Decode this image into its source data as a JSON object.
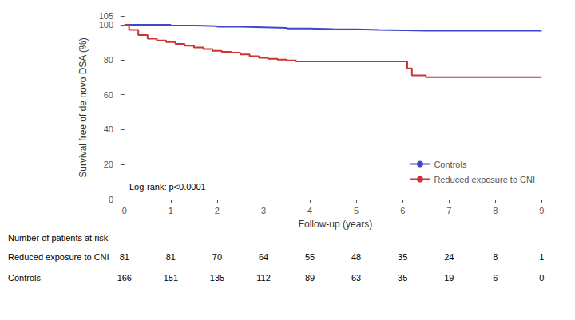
{
  "chart_data": {
    "type": "step",
    "xlabel": "Follow-up (years)",
    "ylabel": "Survival free of de novo DSA (%)",
    "xlim": [
      -0.1,
      9.2
    ],
    "ylim": [
      0,
      105
    ],
    "xticks": [
      0,
      1,
      2,
      3,
      4,
      5,
      6,
      7,
      8,
      9
    ],
    "yticks": [
      0,
      20,
      40,
      60,
      80,
      100
    ],
    "grid": false,
    "legend": "lower right",
    "annotations": [
      "Log-rank: p<0.0001"
    ],
    "series": [
      {
        "name": "Controls",
        "color": "#4444cc",
        "x": [
          0,
          0.05,
          0.2,
          0.5,
          1.0,
          1.5,
          2.0,
          2.5,
          3.0,
          3.5,
          4.0,
          4.5,
          5.0,
          5.5,
          6.0,
          6.5,
          7.0,
          7.5,
          8.0,
          8.5,
          9.0
        ],
        "values": [
          100,
          100,
          100,
          100,
          99.5,
          99.2,
          98.8,
          98.5,
          98.2,
          97.8,
          97.5,
          97.3,
          97.0,
          96.8,
          96.5,
          96.5,
          96.5,
          96.5,
          96.5,
          96.5,
          96.5
        ]
      },
      {
        "name": "Reduced exposure to CNI",
        "color": "#cc3333",
        "x": [
          0,
          0.1,
          0.3,
          0.5,
          0.7,
          0.9,
          1.1,
          1.3,
          1.5,
          1.7,
          1.9,
          2.1,
          2.3,
          2.5,
          2.7,
          2.9,
          3.1,
          3.3,
          3.5,
          3.7,
          3.9,
          4.1,
          4.5,
          5.0,
          5.5,
          6.0,
          6.1,
          6.2,
          6.5,
          7.0,
          7.5,
          8.0,
          8.5,
          9.0
        ],
        "values": [
          100,
          97,
          94,
          92,
          91,
          90,
          89,
          88,
          87,
          86,
          85,
          84.5,
          84,
          83,
          82,
          81,
          80.5,
          80,
          79.5,
          79,
          79,
          79,
          79,
          79,
          79,
          79,
          75,
          71,
          70,
          70,
          70,
          70,
          70,
          70
        ]
      }
    ],
    "risk_table": {
      "title": "Number of patients at risk",
      "times": [
        0,
        1,
        2,
        3,
        4,
        5,
        6,
        7,
        8,
        9
      ],
      "rows": [
        {
          "name": "Reduced exposure to CNI",
          "values": [
            81,
            81,
            70,
            64,
            55,
            48,
            35,
            24,
            8,
            1
          ]
        },
        {
          "name": "Controls",
          "values": [
            166,
            151,
            135,
            112,
            89,
            63,
            35,
            19,
            6,
            0
          ]
        }
      ]
    }
  }
}
